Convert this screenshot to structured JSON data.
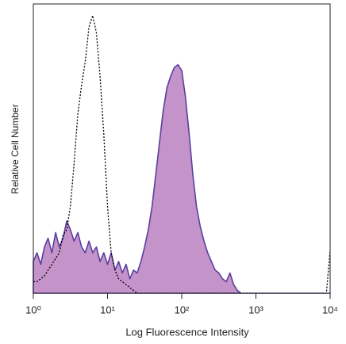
{
  "chart_data": {
    "type": "area",
    "xlabel": "Log Fluorescence Intensity",
    "ylabel": "Relative Cell Number",
    "xscale": "log",
    "xlim": [
      1,
      10000
    ],
    "xticks": [
      {
        "value": 1,
        "label": "10⁰"
      },
      {
        "value": 10,
        "label": "10¹"
      },
      {
        "value": 100,
        "label": "10²"
      },
      {
        "value": 1000,
        "label": "10³"
      },
      {
        "value": 10000,
        "label": "10⁴"
      }
    ],
    "ylim": [
      0,
      100
    ],
    "x": [
      1,
      1.12,
      1.26,
      1.41,
      1.58,
      1.78,
      2,
      2.24,
      2.51,
      2.82,
      3.16,
      3.55,
      3.98,
      4.47,
      5.01,
      5.62,
      6.31,
      7.08,
      7.94,
      8.91,
      10,
      11.2,
      12.6,
      14.1,
      15.8,
      17.8,
      20,
      22.4,
      25.1,
      28.2,
      31.6,
      35.5,
      39.8,
      44.7,
      50.1,
      56.2,
      63.1,
      70.8,
      79.4,
      89.1,
      100,
      112,
      126,
      141,
      158,
      178,
      200,
      224,
      251,
      282,
      316,
      355,
      398,
      447,
      501,
      562,
      631,
      708,
      794,
      891,
      1000,
      3162,
      7943,
      8913,
      10000
    ],
    "series": [
      {
        "color": "#5a3fa0",
        "fill": "#c493c9",
        "dash": "solid",
        "values": [
          11,
          14,
          10,
          16,
          19,
          14,
          21,
          16,
          19,
          25,
          22,
          18,
          21,
          16,
          14,
          18,
          14,
          16,
          11,
          14,
          10,
          14,
          8,
          11,
          7,
          10,
          5,
          8,
          7,
          11,
          16,
          22,
          30,
          41,
          52,
          63,
          71,
          75,
          78,
          79,
          77,
          68,
          55,
          41,
          30,
          23,
          18,
          14,
          11,
          8,
          7,
          5,
          4,
          7,
          3,
          1,
          0,
          0,
          0,
          0,
          0,
          0,
          0,
          0,
          0
        ]
      },
      {
        "color": "#000000",
        "fill": "none",
        "dash": "dotted",
        "values": [
          4,
          4,
          5,
          6,
          8,
          10,
          12,
          14,
          20,
          22,
          30,
          45,
          62,
          72,
          80,
          92,
          96,
          90,
          75,
          55,
          30,
          14,
          8,
          5,
          4,
          3,
          2,
          1,
          0,
          0,
          0,
          0,
          0,
          0,
          0,
          0,
          0,
          0,
          0,
          0,
          0,
          0,
          0,
          0,
          0,
          0,
          0,
          0,
          0,
          0,
          0,
          0,
          0,
          0,
          0,
          0,
          0,
          0,
          0,
          0,
          0,
          0,
          0,
          0,
          15
        ]
      }
    ]
  }
}
